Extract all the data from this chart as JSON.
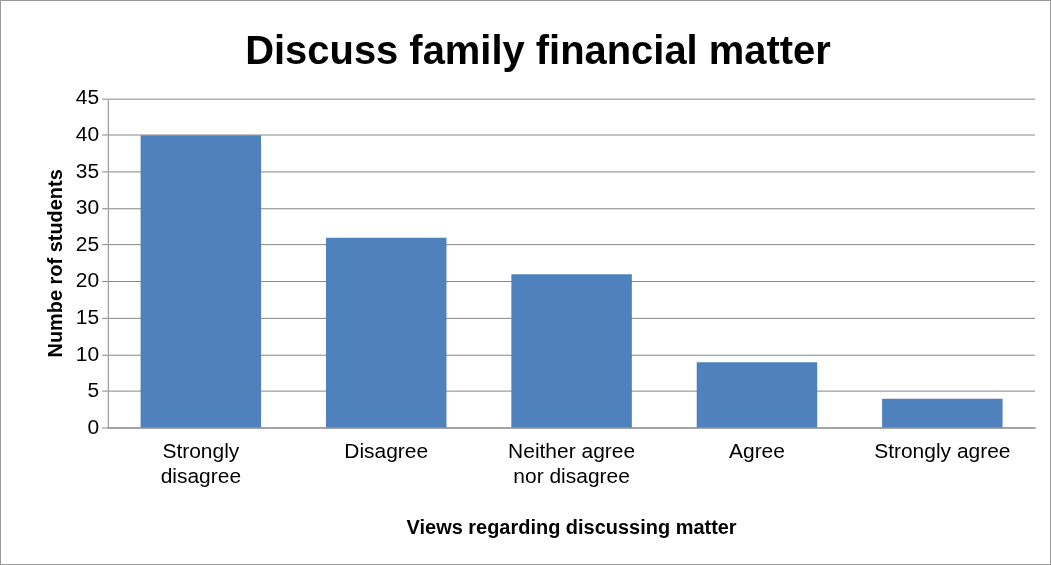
{
  "chart_data": {
    "type": "bar",
    "title": "Discuss family financial matter",
    "xlabel": "Views regarding discussing matter",
    "ylabel": "Numbe rof students",
    "categories": [
      "Strongly disagree",
      "Disagree",
      "Neither agree nor disagree",
      "Agree",
      "Strongly agree"
    ],
    "values": [
      40,
      26,
      21,
      9,
      4
    ],
    "color": "#4f81bd",
    "ylim": [
      0,
      45
    ],
    "yticks": [
      0,
      5,
      10,
      15,
      20,
      25,
      30,
      35,
      40,
      45
    ],
    "grid": "y",
    "legend": false
  }
}
